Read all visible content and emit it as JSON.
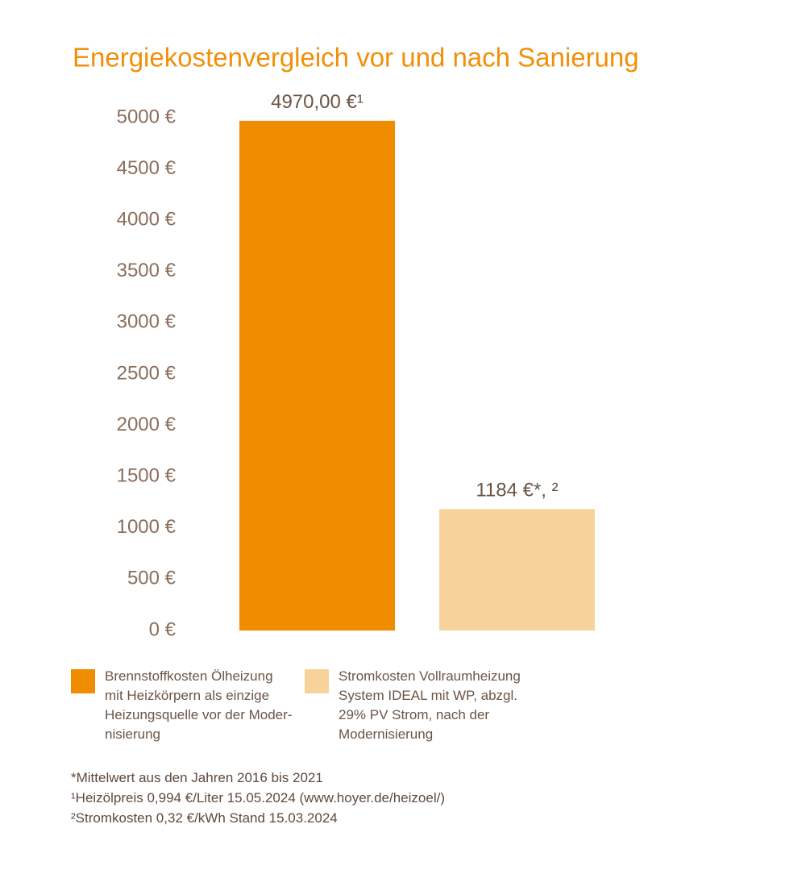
{
  "chart_data": {
    "type": "bar",
    "title": "Energiekostenvergleich vor und nach Sanierung",
    "categories": [
      null
    ],
    "series": [
      {
        "name": "Brennstoffkosten Ölheizung\nmit Heizkörpern als einzige\nHeizungsquelle vor der Moder-\nnisierung",
        "color": "#f08c00",
        "values": [
          4970
        ],
        "value_labels": [
          "4970,00 €¹"
        ]
      },
      {
        "name": "Stromkosten Vollraumheizung\nSystem IDEAL mit WP, abzgl.\n29% PV Strom, nach der\nModernisierung",
        "color": "#f8d29b",
        "values": [
          1184
        ],
        "value_labels": [
          "1184 €*, ²"
        ]
      }
    ],
    "ylim": [
      0,
      5000
    ],
    "yticks": [
      {
        "value": 0,
        "label": "0 €"
      },
      {
        "value": 500,
        "label": "500 €"
      },
      {
        "value": 1000,
        "label": "1000 €"
      },
      {
        "value": 1500,
        "label": "1500 €"
      },
      {
        "value": 2000,
        "label": "2000 €"
      },
      {
        "value": 2500,
        "label": "2500 €"
      },
      {
        "value": 3000,
        "label": "3000 €"
      },
      {
        "value": 3500,
        "label": "3500 €"
      },
      {
        "value": 4000,
        "label": "4000 €"
      },
      {
        "value": 4500,
        "label": "4500 €"
      },
      {
        "value": 5000,
        "label": "5000 €"
      }
    ],
    "grid": false,
    "footnotes": [
      "*Mittelwert aus den Jahren 2016 bis 2021",
      "¹Heizölpreis 0,994 €/Liter 15.05.2024 (www.hoyer.de/heizoel/)",
      "²Stromkosten 0,32 €/kWh  Stand 15.03.2024"
    ]
  }
}
